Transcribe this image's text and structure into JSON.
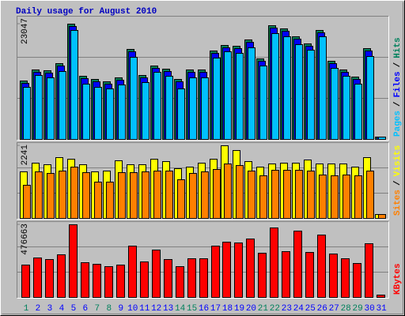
{
  "chart_data": [
    {
      "type": "bar",
      "title": "Daily usage for August 2010",
      "ylim": [
        0,
        23047
      ],
      "yticks": [
        23047
      ],
      "legend_separator": "/",
      "series": [
        {
          "name": "Hits",
          "color": "#00805C",
          "values": [
            11680,
            13890,
            13730,
            15150,
            23047,
            12630,
            12000,
            11520,
            12310,
            18000,
            12790,
            14680,
            14050,
            12000,
            13890,
            13890,
            17680,
            18790,
            18630,
            19890,
            16100,
            22730,
            22100,
            20520,
            19100,
            21780,
            15630,
            13890,
            12470,
            18150,
            470
          ]
        },
        {
          "name": "Files",
          "color": "#0000FF",
          "values": [
            11180,
            13390,
            13230,
            14650,
            22500,
            12130,
            11500,
            11020,
            11810,
            17500,
            12290,
            14180,
            13550,
            11500,
            13390,
            13390,
            17180,
            18290,
            18130,
            19390,
            15600,
            22230,
            21600,
            20020,
            18600,
            21280,
            15130,
            13390,
            11970,
            17650,
            440
          ]
        },
        {
          "name": "Pages",
          "color": "#00C0FF",
          "values": [
            10420,
            12790,
            12310,
            13580,
            21780,
            11050,
            10420,
            10100,
            10890,
            16420,
            11370,
            13420,
            12630,
            10100,
            12310,
            12310,
            16260,
            17520,
            17210,
            18310,
            14680,
            21150,
            20520,
            18940,
            17840,
            20520,
            14210,
            12630,
            11050,
            16580,
            400
          ]
        }
      ]
    },
    {
      "type": "bar",
      "ylim": [
        0,
        2241
      ],
      "yticks": [
        2241
      ],
      "series": [
        {
          "name": "Visits",
          "color": "#FFFF00",
          "values": [
            1437,
            1705,
            1656,
            1876,
            1827,
            1656,
            1437,
            1462,
            1778,
            1656,
            1656,
            1827,
            1754,
            1535,
            1583,
            1705,
            1827,
            2241,
            2095,
            1754,
            1583,
            1681,
            1705,
            1705,
            1803,
            1681,
            1681,
            1681,
            1583,
            1876,
            122
          ]
        },
        {
          "name": "Sites",
          "color": "#FF8000",
          "values": [
            1023,
            1437,
            1388,
            1462,
            1583,
            1413,
            1120,
            1120,
            1413,
            1413,
            1437,
            1462,
            1462,
            1194,
            1388,
            1437,
            1510,
            1681,
            1632,
            1462,
            1315,
            1486,
            1486,
            1486,
            1462,
            1340,
            1315,
            1340,
            1315,
            1462,
            122
          ]
        }
      ]
    },
    {
      "type": "bar",
      "ylim": [
        0,
        476663
      ],
      "yticks": [
        476663
      ],
      "categories": [
        "1",
        "2",
        "3",
        "4",
        "5",
        "6",
        "7",
        "8",
        "9",
        "10",
        "11",
        "12",
        "13",
        "14",
        "15",
        "16",
        "17",
        "18",
        "19",
        "20",
        "21",
        "22",
        "23",
        "24",
        "25",
        "26",
        "27",
        "28",
        "29",
        "30",
        "31"
      ],
      "category_colors": [
        "#00805C",
        "#0000FF",
        "#0000FF",
        "#0000FF",
        "#0000FF",
        "#0000FF",
        "#00805C",
        "#00805C",
        "#0000FF",
        "#0000FF",
        "#0000FF",
        "#0000FF",
        "#0000FF",
        "#00805C",
        "#00805C",
        "#0000FF",
        "#0000FF",
        "#0000FF",
        "#0000FF",
        "#0000FF",
        "#00805C",
        "#00805C",
        "#0000FF",
        "#0000FF",
        "#0000FF",
        "#0000FF",
        "#0000FF",
        "#00805C",
        "#00805C",
        "#0000FF",
        "#0000FF"
      ],
      "series": [
        {
          "name": "KBytes",
          "color": "#FF0000",
          "values": [
            212400,
            259000,
            248700,
            279800,
            476663,
            228000,
            217600,
            202100,
            212400,
            336800,
            233200,
            310900,
            248700,
            202100,
            253900,
            253900,
            336800,
            362700,
            357500,
            383400,
            290200,
            455900,
            300500,
            435200,
            295300,
            409300,
            285000,
            253900,
            222800,
            352300,
            15500
          ]
        }
      ]
    }
  ]
}
